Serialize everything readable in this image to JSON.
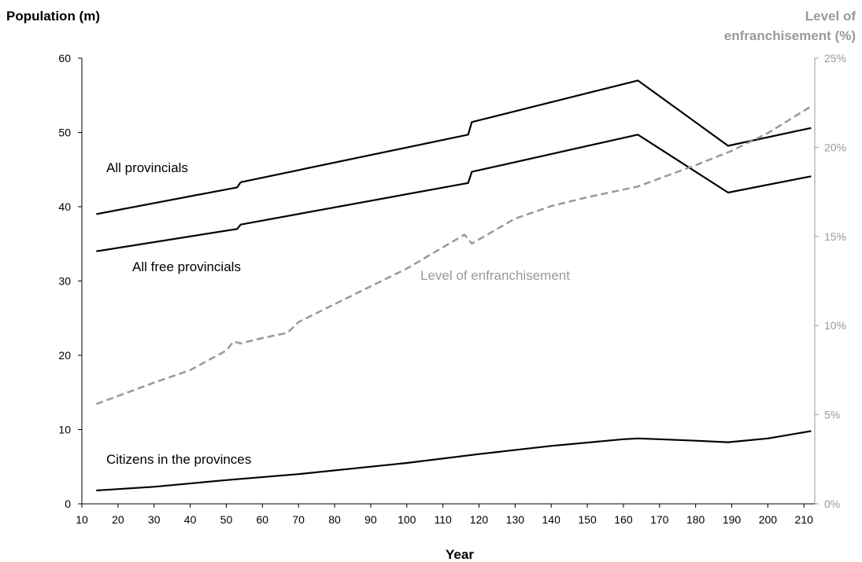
{
  "chart_data": {
    "type": "line",
    "xlabel": "Year",
    "ylabel": "Population (m)",
    "y2label_line1": "Level of",
    "y2label_line2": "enfranchisement (%)",
    "xlim": [
      10,
      213
    ],
    "ylim": [
      0,
      60
    ],
    "y2lim": [
      0,
      25
    ],
    "x_ticks": [
      10,
      20,
      30,
      40,
      50,
      60,
      70,
      80,
      90,
      100,
      110,
      120,
      130,
      140,
      150,
      160,
      170,
      180,
      190,
      200,
      210
    ],
    "y_ticks": [
      0,
      10,
      20,
      30,
      40,
      50,
      60
    ],
    "y2_ticks": [
      0,
      5,
      10,
      15,
      20,
      25
    ],
    "y2_tick_labels": [
      "0%",
      "5%",
      "10%",
      "15%",
      "20%",
      "25%"
    ],
    "grid": false,
    "colors": {
      "population": "#000000",
      "enfranchisement": "#999999",
      "axis_right": "#999999"
    },
    "series": [
      {
        "name": "All provincials",
        "axis": "left",
        "style": "solid",
        "x": [
          14,
          53,
          54,
          117,
          118,
          164,
          189,
          212
        ],
        "values": [
          39.0,
          42.6,
          43.3,
          49.7,
          51.4,
          57.0,
          48.2,
          50.6
        ]
      },
      {
        "name": "All free provincials",
        "axis": "left",
        "style": "solid",
        "x": [
          14,
          53,
          54,
          117,
          118,
          164,
          189,
          212
        ],
        "values": [
          34.0,
          37.0,
          37.6,
          43.2,
          44.7,
          49.7,
          41.9,
          44.1
        ]
      },
      {
        "name": "Citizens in the provinces",
        "axis": "left",
        "style": "solid",
        "x": [
          14,
          30,
          50,
          70,
          100,
          120,
          140,
          160,
          164,
          170,
          180,
          189,
          200,
          212
        ],
        "values": [
          1.8,
          2.3,
          3.2,
          4.0,
          5.5,
          6.7,
          7.8,
          8.7,
          8.8,
          8.7,
          8.5,
          8.3,
          8.8,
          9.8
        ]
      },
      {
        "name": "Level of enfranchisement",
        "axis": "right",
        "style": "dashed",
        "x": [
          14,
          30,
          40,
          50,
          52,
          54,
          60,
          67,
          70,
          80,
          90,
          100,
          116,
          118,
          130,
          140,
          150,
          164,
          180,
          190,
          200,
          212
        ],
        "values": [
          5.6,
          6.8,
          7.5,
          8.6,
          9.1,
          9.0,
          9.3,
          9.6,
          10.2,
          11.2,
          12.2,
          13.2,
          15.1,
          14.6,
          16.0,
          16.7,
          17.2,
          17.8,
          19.0,
          19.8,
          20.8,
          22.3
        ]
      }
    ]
  }
}
